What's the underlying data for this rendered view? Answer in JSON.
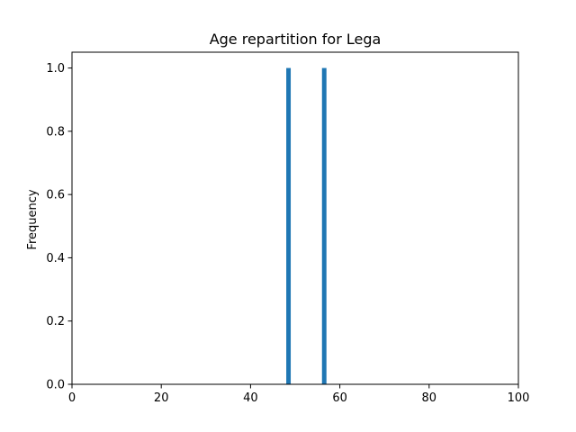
{
  "chart_data": {
    "type": "bar",
    "title": "Age repartition for Lega",
    "xlabel": "",
    "ylabel": "Frequency",
    "xlim": [
      0,
      100
    ],
    "ylim": [
      0,
      1.05
    ],
    "x_ticks": [
      "0",
      "20",
      "40",
      "60",
      "80",
      "100"
    ],
    "y_ticks": [
      "0.0",
      "0.2",
      "0.4",
      "0.6",
      "0.8",
      "1.0"
    ],
    "bin_width": 1,
    "bars": [
      {
        "x": 48,
        "value": 1
      },
      {
        "x": 56,
        "value": 1
      }
    ],
    "bar_color": "#1f77b4",
    "grid": false,
    "legend": "none"
  }
}
